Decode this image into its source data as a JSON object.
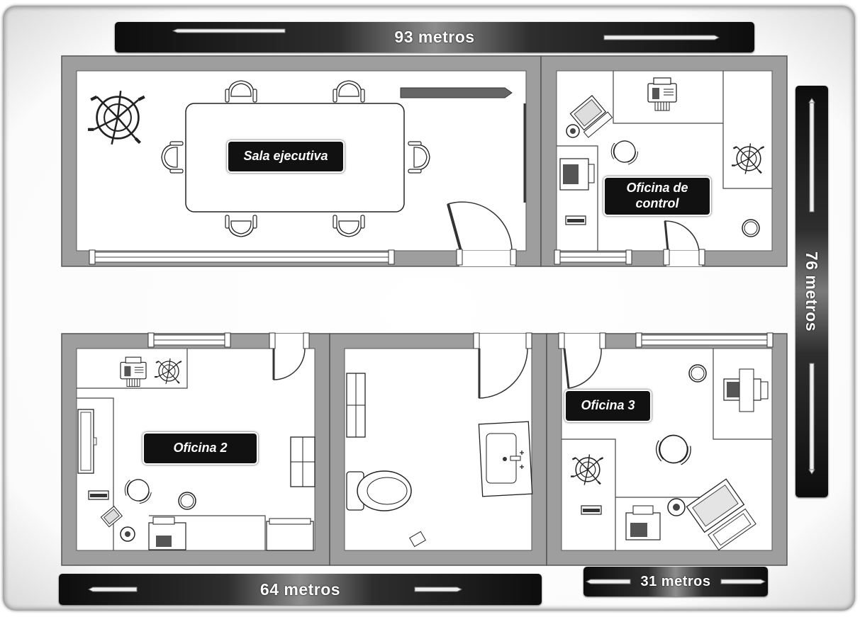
{
  "dimensions": {
    "top": "93 metros",
    "right": "76 metros",
    "bottom_left": "64 metros",
    "bottom_right": "31 metros"
  },
  "rooms": {
    "executive": "Sala ejecutiva",
    "control": "Oficina de control",
    "office2": "Oficina 2",
    "office3": "Oficina 3"
  },
  "icons": [
    "plant-icon",
    "table-icon",
    "chair-icon",
    "printer-icon",
    "fax-icon",
    "computer-icon",
    "toilet-icon",
    "sink-icon",
    "door-icon",
    "window-icon"
  ],
  "colors": {
    "wall": "#9e9e9e",
    "wall_border": "#555555",
    "floor": "#ffffff",
    "label_bg": "#111111"
  }
}
